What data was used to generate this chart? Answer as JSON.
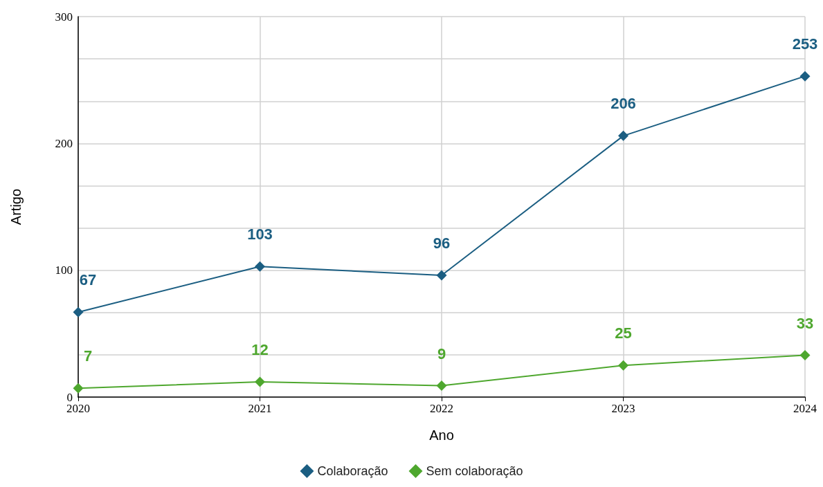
{
  "chart_data": {
    "type": "line",
    "xlabel": "Ano",
    "ylabel": "Artigo",
    "x": [
      2020,
      2021,
      2022,
      2023,
      2024
    ],
    "series": [
      {
        "name": "Colaboração",
        "color": "#1b5e82",
        "values": [
          67,
          103,
          96,
          206,
          253
        ]
      },
      {
        "name": "Sem colaboração",
        "color": "#4ea72e",
        "values": [
          7,
          12,
          9,
          25,
          33
        ]
      }
    ],
    "xlim": [
      2020,
      2024
    ],
    "xticks": [
      2020,
      2021,
      2022,
      2023,
      2024
    ],
    "ylim": [
      0,
      300
    ],
    "yticks": [
      0,
      {
        "value": 33.3,
        "label": null
      },
      {
        "value": 66.7,
        "label": null
      },
      100,
      {
        "value": 133.3,
        "label": null
      },
      {
        "value": 166.7,
        "label": null
      },
      200,
      {
        "value": 233.3,
        "label": null
      },
      {
        "value": 266.7,
        "label": null
      },
      300
    ],
    "grid": true,
    "legend": "bottom",
    "marker": "diamond",
    "line_style": "solid",
    "data_labels": true
  }
}
